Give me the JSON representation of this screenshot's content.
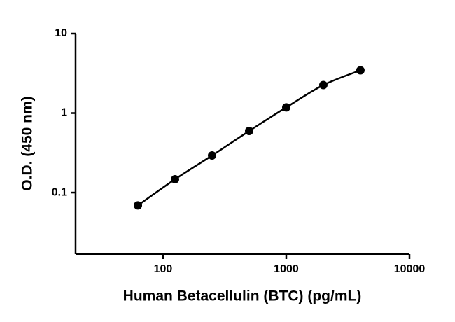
{
  "chart_data": {
    "type": "scatter",
    "x_label": "Human Betacellulin (BTC) (pg/mL)",
    "y_label": "O.D. (450 nm)",
    "x": [
      62.5,
      125,
      250,
      500,
      1000,
      2000,
      4000
    ],
    "values": [
      0.069,
      0.147,
      0.293,
      0.596,
      1.18,
      2.25,
      3.45
    ],
    "color": "#000000",
    "line": true,
    "xscale": "log",
    "yscale": "log",
    "xlim": [
      19.5,
      10000
    ],
    "ylim": [
      0.0168,
      10
    ],
    "xticks": [
      100,
      1000,
      10000
    ],
    "yticks": [
      0.1,
      1,
      10
    ]
  }
}
